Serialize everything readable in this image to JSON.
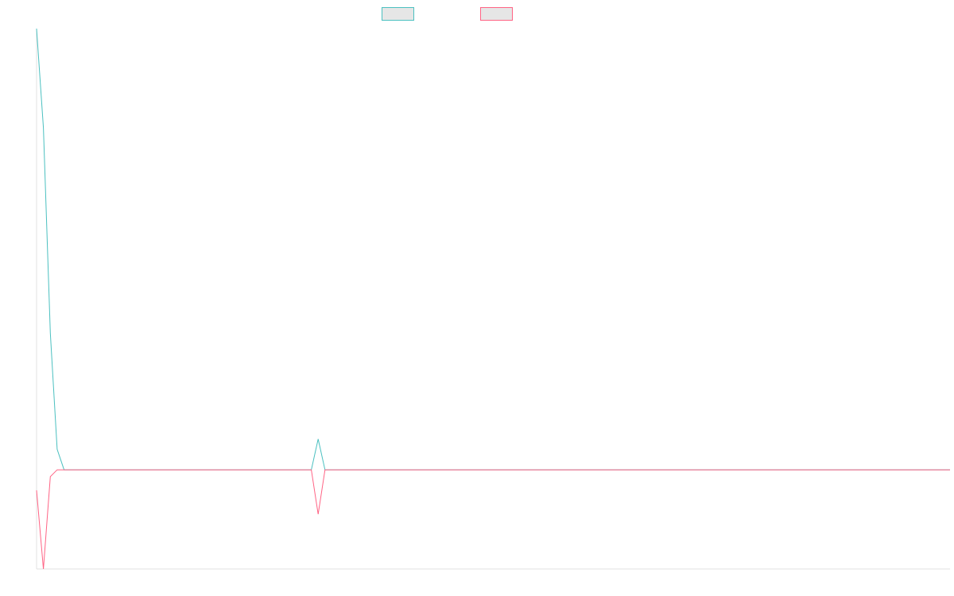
{
  "chart_data": {
    "type": "line",
    "title": "",
    "xlabel": "",
    "ylabel": "",
    "grid": false,
    "legend_position": "top-center",
    "x": [
      0,
      1,
      2,
      3,
      4,
      5,
      6,
      7,
      8,
      9,
      10,
      11,
      12,
      13,
      14,
      15,
      16,
      17,
      18,
      19,
      20,
      21,
      22,
      23,
      24,
      25,
      26,
      27,
      28,
      29,
      30,
      31,
      32,
      33,
      34,
      35,
      36,
      37,
      38,
      39,
      40,
      41,
      42,
      43,
      44,
      45,
      46,
      47,
      48,
      49,
      50,
      51,
      52,
      53,
      54,
      55,
      56,
      57,
      58,
      59,
      60,
      61,
      62,
      63,
      64,
      65,
      66,
      67,
      68,
      69,
      70,
      71,
      72,
      73,
      74,
      75,
      76,
      77,
      78,
      79,
      80,
      81,
      82,
      83,
      84,
      85,
      86,
      87,
      88,
      89,
      90,
      91,
      92,
      93,
      94,
      95,
      96,
      97,
      98,
      99,
      100,
      101,
      102,
      103,
      104,
      105,
      106,
      107,
      108,
      109,
      110,
      111,
      112,
      113,
      114,
      115,
      116,
      117,
      118,
      119,
      120,
      121,
      122,
      123,
      124,
      125,
      126,
      127,
      128,
      129,
      130,
      131,
      132,
      133
    ],
    "xlim": [
      0,
      133
    ],
    "ylim": [
      -2.9,
      12.9
    ],
    "series": [
      {
        "name": "",
        "color": "#4bc0c0",
        "values": [
          12.9,
          10.0,
          4.0,
          0.6,
          0,
          0,
          0,
          0,
          0,
          0,
          0,
          0,
          0,
          0,
          0,
          0,
          0,
          0,
          0,
          0,
          0,
          0,
          0,
          0,
          0,
          0,
          0,
          0,
          0,
          0,
          0,
          0,
          0,
          0,
          0,
          0,
          0,
          0,
          0,
          0,
          0,
          0.9,
          0,
          0,
          0,
          0,
          0,
          0,
          0,
          0,
          0,
          0,
          0,
          0,
          0,
          0,
          0,
          0,
          0,
          0,
          0,
          0,
          0,
          0,
          0,
          0,
          0,
          0,
          0,
          0,
          0,
          0,
          0,
          0,
          0,
          0,
          0,
          0,
          0,
          0,
          0,
          0,
          0,
          0,
          0,
          0,
          0,
          0,
          0,
          0,
          0,
          0,
          0,
          0,
          0,
          0,
          0,
          0,
          0,
          0,
          0,
          0,
          0,
          0,
          0,
          0,
          0,
          0,
          0,
          0,
          0,
          0,
          0,
          0,
          0,
          0,
          0,
          0,
          0,
          0,
          0,
          0,
          0,
          0,
          0,
          0,
          0,
          0,
          0,
          0,
          0,
          0,
          0,
          0
        ]
      },
      {
        "name": "",
        "color": "#ff6384",
        "values": [
          -0.6,
          -2.9,
          -0.2,
          0,
          0,
          0,
          0,
          0,
          0,
          0,
          0,
          0,
          0,
          0,
          0,
          0,
          0,
          0,
          0,
          0,
          0,
          0,
          0,
          0,
          0,
          0,
          0,
          0,
          0,
          0,
          0,
          0,
          0,
          0,
          0,
          0,
          0,
          0,
          0,
          0,
          0,
          -1.3,
          0,
          0,
          0,
          0,
          0,
          0,
          0,
          0,
          0,
          0,
          0,
          0,
          0,
          0,
          0,
          0,
          0,
          0,
          0,
          0,
          0,
          0,
          0,
          0,
          0,
          0,
          0,
          0,
          0,
          0,
          0,
          0,
          0,
          0,
          0,
          0,
          0,
          0,
          0,
          0,
          0,
          0,
          0,
          0,
          0,
          0,
          0,
          0,
          0,
          0,
          0,
          0,
          0,
          0,
          0,
          0,
          0,
          0,
          0,
          0,
          0,
          0,
          0,
          0,
          0,
          0,
          0,
          0,
          0,
          0,
          0,
          0,
          0,
          0,
          0,
          0,
          0,
          0,
          0,
          0,
          0,
          0,
          0,
          0,
          0,
          0,
          0,
          0,
          0,
          0,
          0,
          0
        ]
      }
    ]
  }
}
